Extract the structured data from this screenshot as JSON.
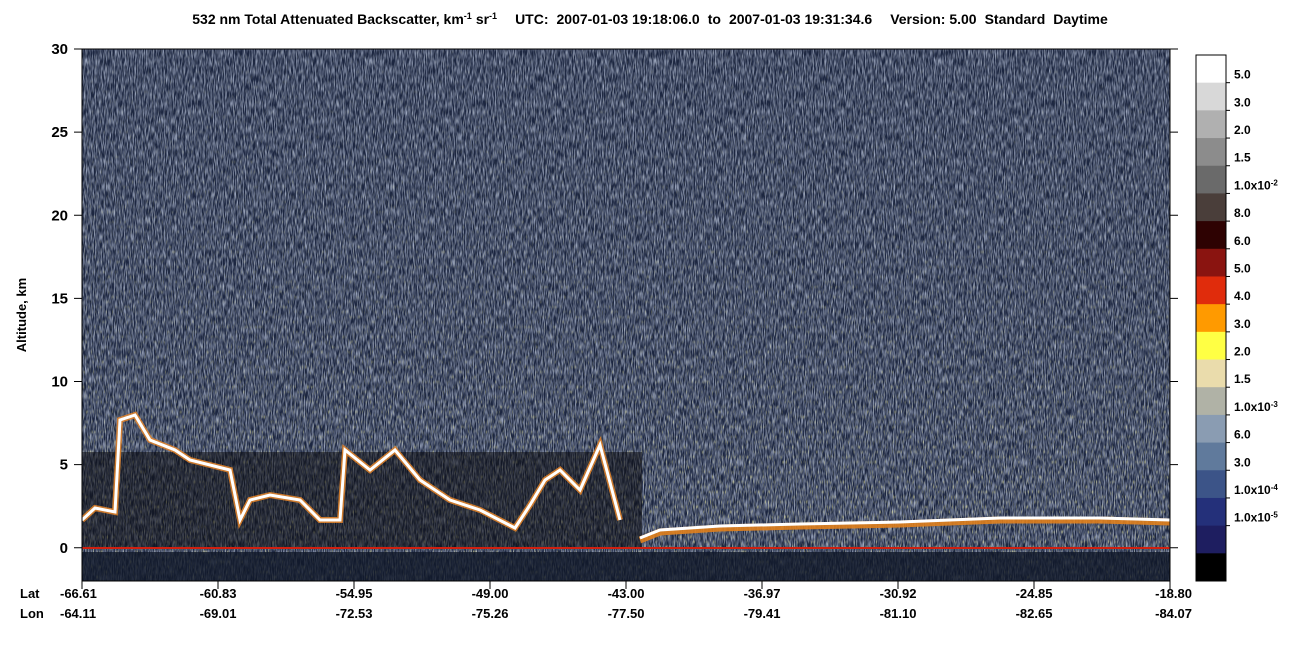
{
  "chart_data": {
    "type": "heatmap",
    "title": {
      "main": "532 nm Total Attenuated Backscatter, km",
      "exp1": "-1",
      "unit2": "sr",
      "exp2": "-1",
      "utc_label": "UTC:",
      "start": "2007-01-03 19:18:06.0",
      "to": "to",
      "end": "2007-01-03 19:31:34.6",
      "version": "Version: 5.00",
      "product": "Standard",
      "daytime": "Daytime"
    },
    "y_label": "Altitude, km",
    "ylim": [
      -2,
      30
    ],
    "yticks": [
      0,
      5,
      10,
      15,
      20,
      25,
      30
    ],
    "x_row_labels": [
      "Lat",
      "Lon"
    ],
    "lat": [
      "-66.61",
      "-60.83",
      "-54.95",
      "-49.00",
      "-43.00",
      "-36.97",
      "-30.92",
      "-24.85",
      "-18.80"
    ],
    "lon": [
      "-64.11",
      "-69.01",
      "-72.53",
      "-75.26",
      "-77.50",
      "-79.41",
      "-81.10",
      "-82.65",
      "-84.07"
    ],
    "colorbar": {
      "colors": [
        "#ffffff",
        "#d8d8d8",
        "#b0b0b0",
        "#8c8c8c",
        "#6a6a6a",
        "#4a3e3a",
        "#2e0202",
        "#8a1410",
        "#e02c0c",
        "#ff9a00",
        "#ffff44",
        "#eadcac",
        "#b0b2a6",
        "#8a9cb2",
        "#607a9c",
        "#3c5488",
        "#24307a",
        "#1e1e60",
        "#000000"
      ],
      "labels": [
        "5.0",
        "3.0",
        "2.0",
        "1.5",
        {
          "text": "1.0x10",
          "exp": "-2"
        },
        "8.0",
        "6.0",
        "5.0",
        "4.0",
        "3.0",
        "2.0",
        "1.5",
        {
          "text": "1.0x10",
          "exp": "-3"
        },
        "6.0",
        "3.0",
        {
          "text": "1.0x10",
          "exp": "-4"
        },
        {
          "text": "1.0x10",
          "exp": "-5"
        }
      ]
    }
  }
}
